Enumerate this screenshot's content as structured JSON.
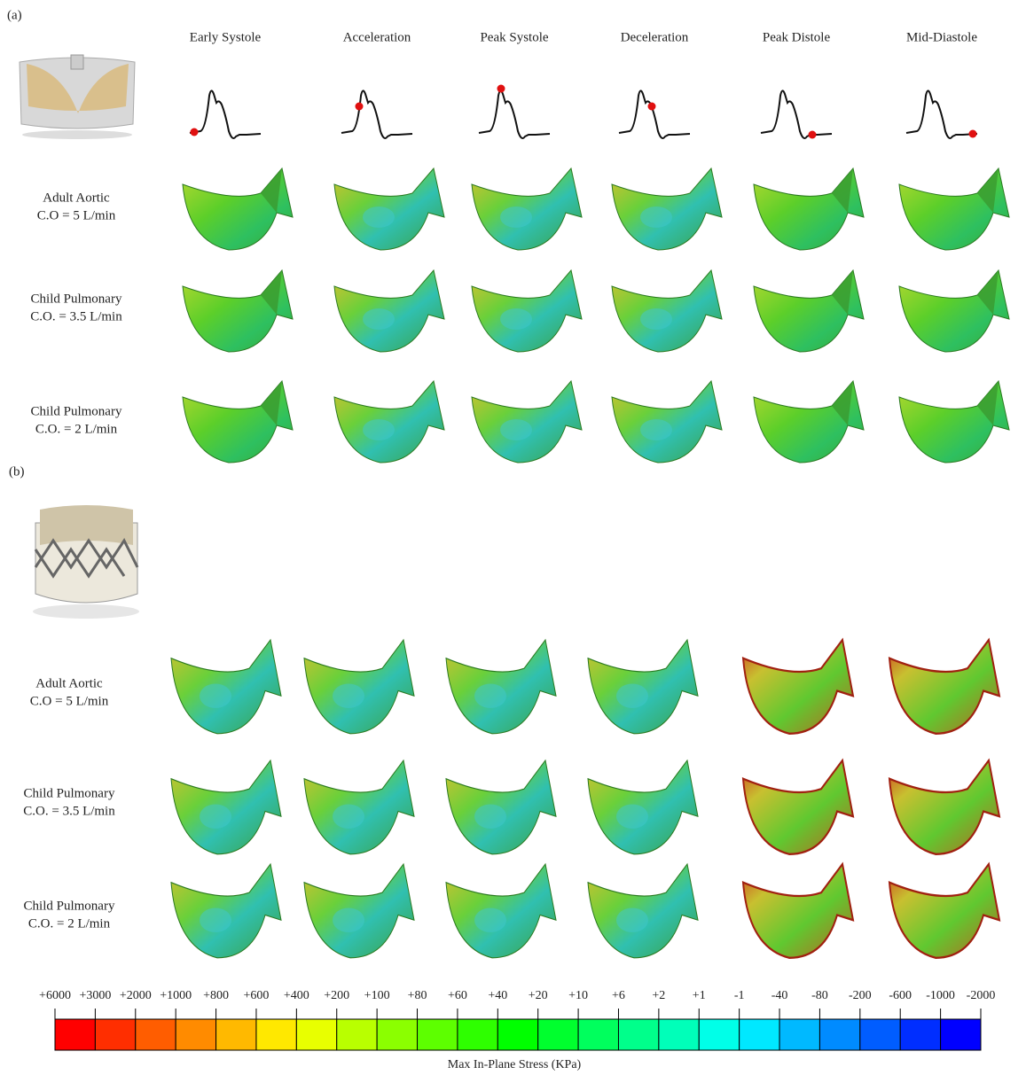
{
  "panels": [
    {
      "label": "(a)",
      "columns": [
        "Early Systole",
        "Acceleration",
        "Peak Systole",
        "Deceleration",
        "Peak Distole",
        "Mid-Diastole"
      ],
      "rows": [
        {
          "lines": [
            "Adult Aortic",
            "C.O = 5 L/min"
          ]
        },
        {
          "lines": [
            "Child Pulmonary",
            "C.O. = 3.5 L/min"
          ]
        },
        {
          "lines": [
            "Child Pulmonary",
            "C.O. = 2 L/min"
          ]
        }
      ]
    },
    {
      "label": "(b)",
      "rows": [
        {
          "lines": [
            "Adult Aortic",
            "C.O = 5 L/min"
          ]
        },
        {
          "lines": [
            "Child Pulmonary",
            "C.O. = 3.5 L/min"
          ]
        },
        {
          "lines": [
            "Child Pulmonary",
            "C.O. = 2 L/min"
          ]
        }
      ]
    }
  ],
  "colorbar": {
    "labels": [
      "+6000",
      "+3000",
      "+2000",
      "+1000",
      "+800",
      "+600",
      "+400",
      "+200",
      "+100",
      "+80",
      "+60",
      "+40",
      "+20",
      "+10",
      "+6",
      "+2",
      "+1",
      "-1",
      "-40",
      "-80",
      "-200",
      "-600",
      "-1000",
      "-2000"
    ],
    "title": "Max In-Plane Stress (KPa)"
  }
}
